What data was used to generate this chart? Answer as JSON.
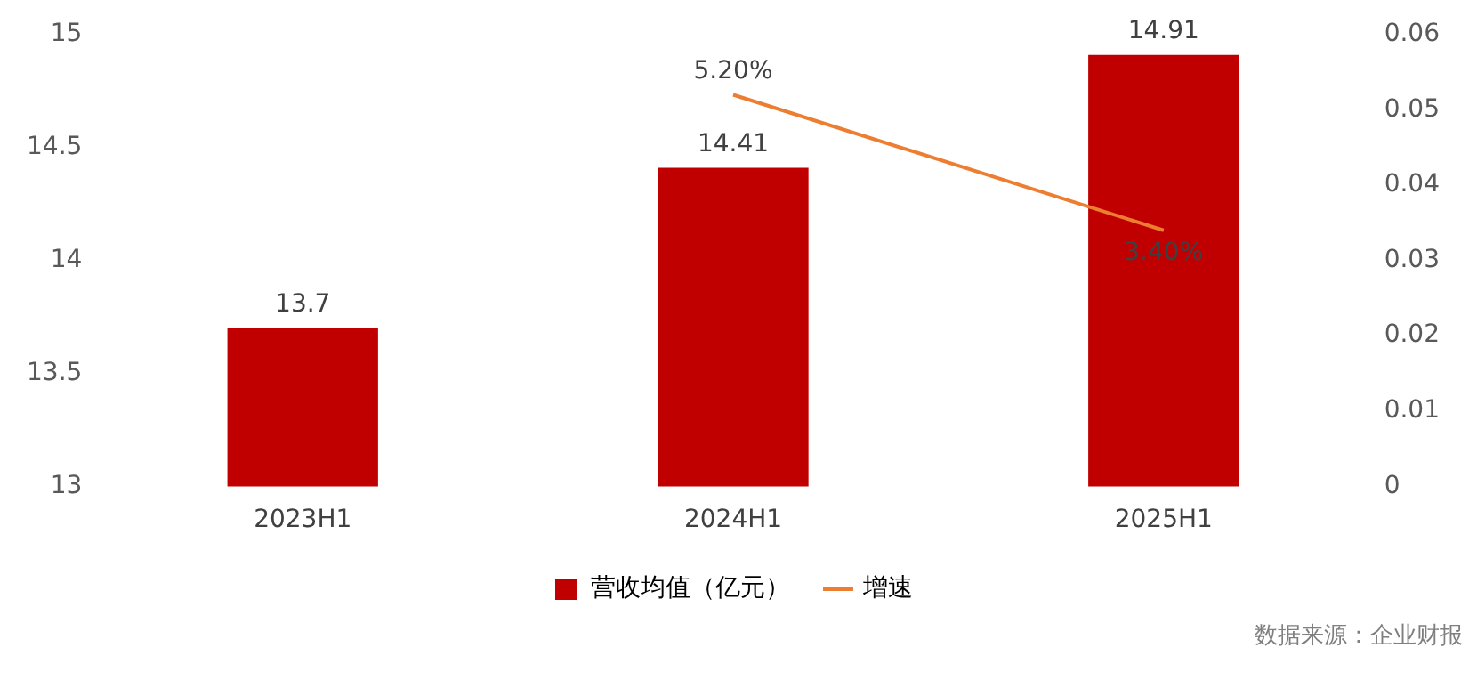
{
  "chart_data": {
    "type": "bar",
    "categories": [
      "2023H1",
      "2024H1",
      "2025H1"
    ],
    "series": [
      {
        "name": "营收均值（亿元）",
        "color": "#c00000",
        "values": [
          13.7,
          14.41,
          14.91
        ],
        "value_labels": [
          "13.7",
          "14.41",
          "14.91"
        ]
      },
      {
        "name": "增速",
        "type": "line",
        "axis": "y2",
        "color": "#ed7d31",
        "values": [
          null,
          0.052,
          0.034
        ],
        "value_labels": [
          null,
          "5.20%",
          "3.40%"
        ]
      }
    ],
    "ylim": [
      13,
      15
    ],
    "yticks": [
      13,
      13.5,
      14,
      14.5,
      15
    ],
    "y2lim": [
      0,
      0.06
    ],
    "y2ticks": [
      0,
      0.01,
      0.02,
      0.03,
      0.04,
      0.05,
      0.06
    ],
    "grid": false,
    "legend": "bottom",
    "marker": "none",
    "line_style": "solid",
    "annotations": [
      "数据来源：企业财报"
    ]
  }
}
